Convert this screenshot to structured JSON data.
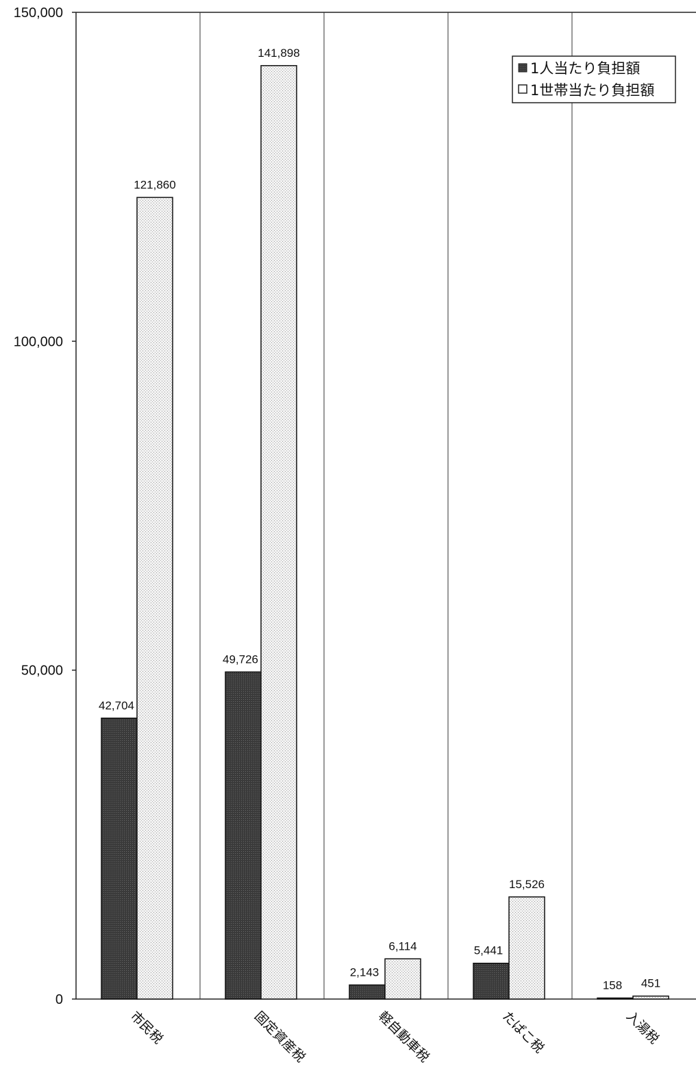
{
  "chart_data": {
    "type": "bar",
    "categories": [
      "市民税",
      "固定資産税",
      "軽自動車税",
      "たばこ税",
      "入湯税"
    ],
    "series": [
      {
        "name": "1人当たり負担額",
        "values": [
          42704,
          49726,
          2143,
          5441,
          158
        ],
        "labels": [
          "42,704",
          "49,726",
          "2,143",
          "5,441",
          "158"
        ],
        "color": "#4a4a4a"
      },
      {
        "name": "1世帯当たり負担額",
        "values": [
          121860,
          141898,
          6114,
          15526,
          451
        ],
        "labels": [
          "121,860",
          "141,898",
          "6,114",
          "15,526",
          "451"
        ],
        "color": "#e6e6e6"
      }
    ],
    "y_ticks": [
      0,
      50000,
      100000,
      150000
    ],
    "y_tick_labels": [
      "0",
      "50,000",
      "100,000",
      "150,000"
    ],
    "ylim": [
      0,
      150000
    ],
    "legend_position": "top-right",
    "grid": false,
    "category_separators": true
  }
}
